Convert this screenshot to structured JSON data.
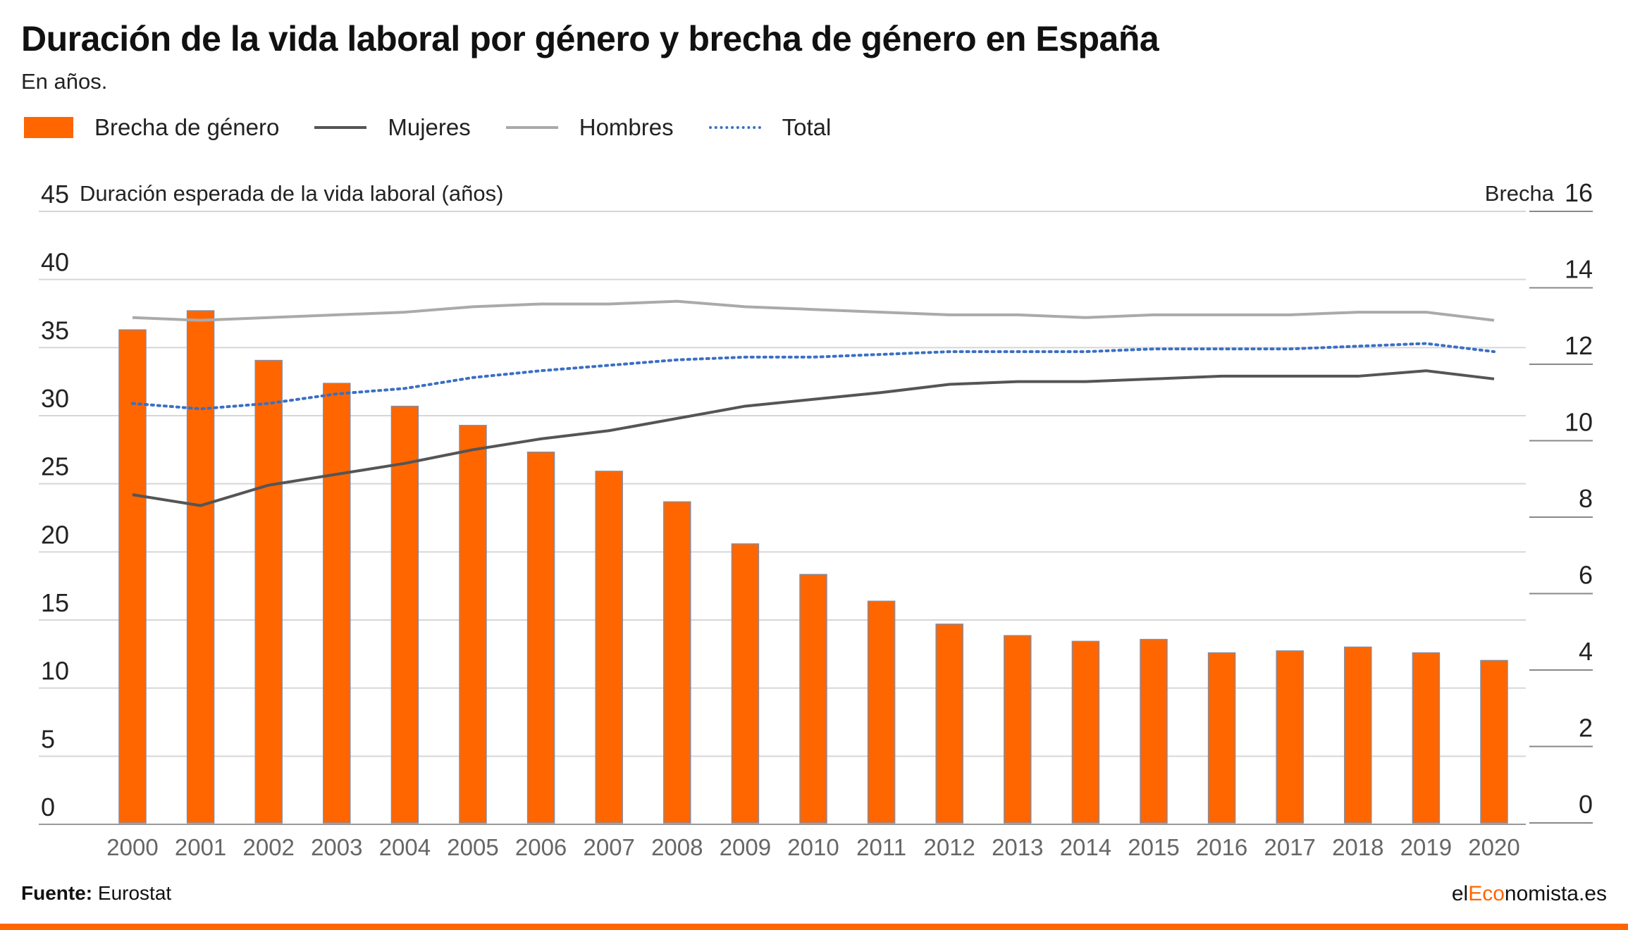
{
  "header": {
    "title": "Duración de la vida laboral por género y brecha de género en España",
    "subtitle": "En años."
  },
  "legend": {
    "items": [
      {
        "label": "Brecha de género",
        "kind": "bar",
        "color": "#ff6600"
      },
      {
        "label": "Mujeres",
        "kind": "line",
        "color": "#555555"
      },
      {
        "label": "Hombres",
        "kind": "line",
        "color": "#aaaaaa"
      },
      {
        "label": "Total",
        "kind": "dotted",
        "color": "#3a6fc4"
      }
    ]
  },
  "footer": {
    "source_label": "Fuente:",
    "source_value": "Eurostat",
    "brand_prefix": "el",
    "brand_accent": "Eco",
    "brand_suffix": "nomista.es"
  },
  "chart_data": {
    "type": "bar",
    "categories": [
      "2000",
      "2001",
      "2002",
      "2003",
      "2004",
      "2005",
      "2006",
      "2007",
      "2008",
      "2009",
      "2010",
      "2011",
      "2012",
      "2013",
      "2014",
      "2015",
      "2016",
      "2017",
      "2018",
      "2019",
      "2020"
    ],
    "ylabel": "Duración esperada de la vida laboral (años)",
    "y2label": "Brecha",
    "ylim": [
      0,
      45
    ],
    "y2lim": [
      0,
      16
    ],
    "yticks": [
      0,
      5,
      10,
      15,
      20,
      25,
      30,
      35,
      40,
      45
    ],
    "y2ticks": [
      0,
      2,
      4,
      6,
      8,
      10,
      12,
      14,
      16
    ],
    "grid": true,
    "legend_position": "top-left",
    "series": [
      {
        "name": "Brecha de género",
        "type": "bar",
        "axis": "right",
        "color": "#ff6600",
        "values": [
          12.9,
          13.4,
          12.1,
          11.5,
          10.9,
          10.4,
          9.7,
          9.2,
          8.4,
          7.3,
          6.5,
          5.8,
          5.2,
          4.9,
          4.75,
          4.8,
          4.45,
          4.5,
          4.6,
          4.45,
          4.25
        ]
      },
      {
        "name": "Mujeres",
        "type": "line",
        "axis": "left",
        "color": "#555555",
        "values": [
          24.2,
          23.4,
          24.9,
          25.7,
          26.5,
          27.5,
          28.3,
          28.9,
          29.8,
          30.7,
          31.2,
          31.7,
          32.3,
          32.5,
          32.5,
          32.7,
          32.9,
          32.9,
          32.9,
          33.3,
          32.7
        ]
      },
      {
        "name": "Hombres",
        "type": "line",
        "axis": "left",
        "color": "#aaaaaa",
        "values": [
          37.2,
          37.0,
          37.2,
          37.4,
          37.6,
          38.0,
          38.2,
          38.2,
          38.4,
          38.0,
          37.8,
          37.6,
          37.4,
          37.4,
          37.2,
          37.4,
          37.4,
          37.4,
          37.6,
          37.6,
          37.0
        ]
      },
      {
        "name": "Total",
        "type": "dotted-line",
        "axis": "left",
        "color": "#3a6fc4",
        "values": [
          30.9,
          30.5,
          30.9,
          31.6,
          32.0,
          32.8,
          33.3,
          33.7,
          34.1,
          34.3,
          34.3,
          34.5,
          34.7,
          34.7,
          34.7,
          34.9,
          34.9,
          34.9,
          35.1,
          35.3,
          34.7
        ]
      }
    ]
  }
}
